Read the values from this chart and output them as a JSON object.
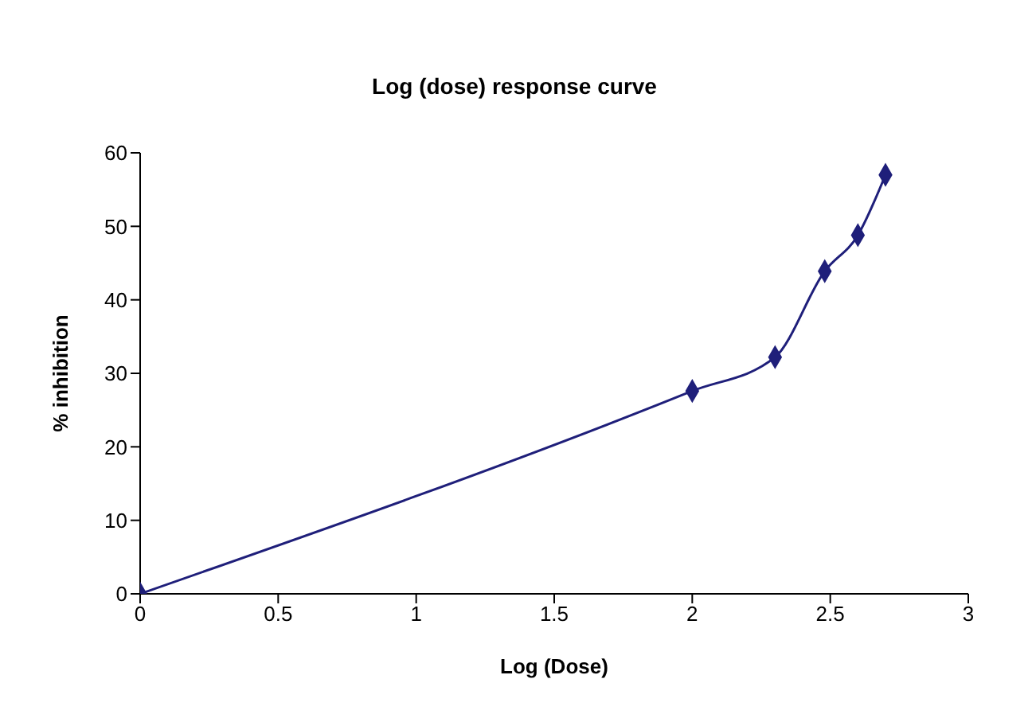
{
  "chart_data": {
    "type": "line",
    "title": "Log (dose) response curve",
    "xlabel": "Log (Dose)",
    "ylabel": "% inhibition",
    "x": [
      0,
      2,
      2.3,
      2.48,
      2.6,
      2.7
    ],
    "series": [
      {
        "color": "#1f1f7a",
        "values": [
          0,
          27.6,
          32.2,
          43.9,
          48.8,
          57.0
        ]
      }
    ],
    "xlim": [
      0,
      3
    ],
    "xticks": [
      0,
      0.5,
      1,
      1.5,
      2,
      2.5,
      3
    ],
    "ylim": [
      0,
      60
    ],
    "yticks": [
      0,
      10,
      20,
      30,
      40,
      50,
      60
    ],
    "grid": false,
    "legend": false,
    "marker": "diamond",
    "line_style": "solid"
  }
}
